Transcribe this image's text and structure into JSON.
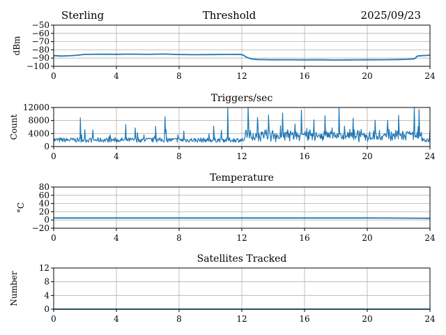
{
  "header": {
    "left": "Sterling",
    "center": "Threshold",
    "right": "2025/09/23"
  },
  "colors": {
    "series": "#1f77b4",
    "grid": "#b0b0b0",
    "axis": "#000000"
  },
  "chart_data": [
    {
      "type": "line",
      "title": "",
      "xlabel": "",
      "ylabel": "dBm",
      "xlim": [
        0,
        24
      ],
      "ylim": [
        -100,
        -50
      ],
      "xticks": [
        0,
        4,
        8,
        12,
        16,
        20,
        24
      ],
      "yticks": [
        -100,
        -90,
        -80,
        -70,
        -60,
        -50
      ],
      "ytick_labels": [
        "−100",
        "−90",
        "−80",
        "−70",
        "−60",
        "−50"
      ],
      "grid": true,
      "series": [
        {
          "name": "Threshold",
          "x": [
            0,
            0.5,
            1,
            1.5,
            2,
            3,
            4,
            5,
            6,
            7,
            8,
            9,
            10,
            11,
            11.9,
            12.1,
            12.3,
            12.6,
            13,
            14,
            15,
            16,
            17,
            18,
            19,
            20,
            21,
            22,
            22.5,
            23,
            23.2,
            23.5,
            24
          ],
          "y": [
            -87,
            -87.5,
            -87.2,
            -86.5,
            -85.5,
            -85.3,
            -85.4,
            -85.2,
            -85.5,
            -85.1,
            -85.7,
            -85.9,
            -85.8,
            -85.6,
            -85.5,
            -86.5,
            -89,
            -91,
            -91.8,
            -92.1,
            -92,
            -92.2,
            -92.1,
            -92.4,
            -92.2,
            -92.1,
            -92,
            -91.8,
            -91.5,
            -91,
            -87.5,
            -87,
            -86.5
          ]
        }
      ]
    },
    {
      "type": "line",
      "title": "Triggers/sec",
      "xlabel": "",
      "ylabel": "Count",
      "xlim": [
        0,
        24
      ],
      "ylim": [
        0,
        12000
      ],
      "xticks": [
        0,
        4,
        8,
        12,
        16,
        20,
        24
      ],
      "yticks": [
        0,
        4000,
        8000,
        12000
      ],
      "ytick_labels": [
        "0",
        "4000",
        "8000",
        "12000"
      ],
      "grid": true,
      "series": [
        {
          "name": "Triggers/sec",
          "base": 1800,
          "noise": 1400,
          "x": [
            0,
            1.7,
            2.5,
            4.6,
            5.2,
            6.5,
            7.1,
            8.3,
            10.2,
            11.1,
            12.4,
            13.0,
            13.7,
            14.6,
            15.8,
            16.6,
            17.3,
            18.2,
            19.1,
            20.5,
            21.3,
            22.0,
            23.0,
            23.3,
            24
          ],
          "y": [
            2400,
            8800,
            5100,
            6800,
            5700,
            6200,
            9200,
            4800,
            6300,
            12000,
            12000,
            8900,
            9700,
            10300,
            11200,
            8200,
            9500,
            12000,
            8700,
            8100,
            8000,
            9600,
            12000,
            11400,
            5000
          ]
        }
      ]
    },
    {
      "type": "line",
      "title": "Temperature",
      "xlabel": "",
      "ylabel": "°C",
      "xlim": [
        0,
        24
      ],
      "ylim": [
        -20,
        80
      ],
      "xticks": [
        0,
        4,
        8,
        12,
        16,
        20,
        24
      ],
      "yticks": [
        -20,
        0,
        20,
        40,
        60,
        80
      ],
      "ytick_labels": [
        "−20",
        "0",
        "20",
        "40",
        "60",
        "80"
      ],
      "grid": true,
      "series": [
        {
          "name": "Temperature",
          "x": [
            0,
            4,
            8,
            12,
            16,
            20,
            21,
            22,
            23,
            24
          ],
          "y": [
            5,
            5,
            5,
            5,
            5,
            5,
            4.8,
            4.6,
            4.4,
            4.0
          ]
        }
      ]
    },
    {
      "type": "line",
      "title": "Satellites Tracked",
      "xlabel": "",
      "ylabel": "Number",
      "xlim": [
        0,
        24
      ],
      "ylim": [
        0,
        12
      ],
      "xticks": [
        0,
        4,
        8,
        12,
        16,
        20,
        24
      ],
      "yticks": [
        0,
        4,
        8,
        12
      ],
      "ytick_labels": [
        "0",
        "4",
        "8",
        "12"
      ],
      "grid": true,
      "series": [
        {
          "name": "Satellites Tracked",
          "x": [
            0,
            24
          ],
          "y": [
            0,
            0
          ]
        }
      ]
    }
  ]
}
